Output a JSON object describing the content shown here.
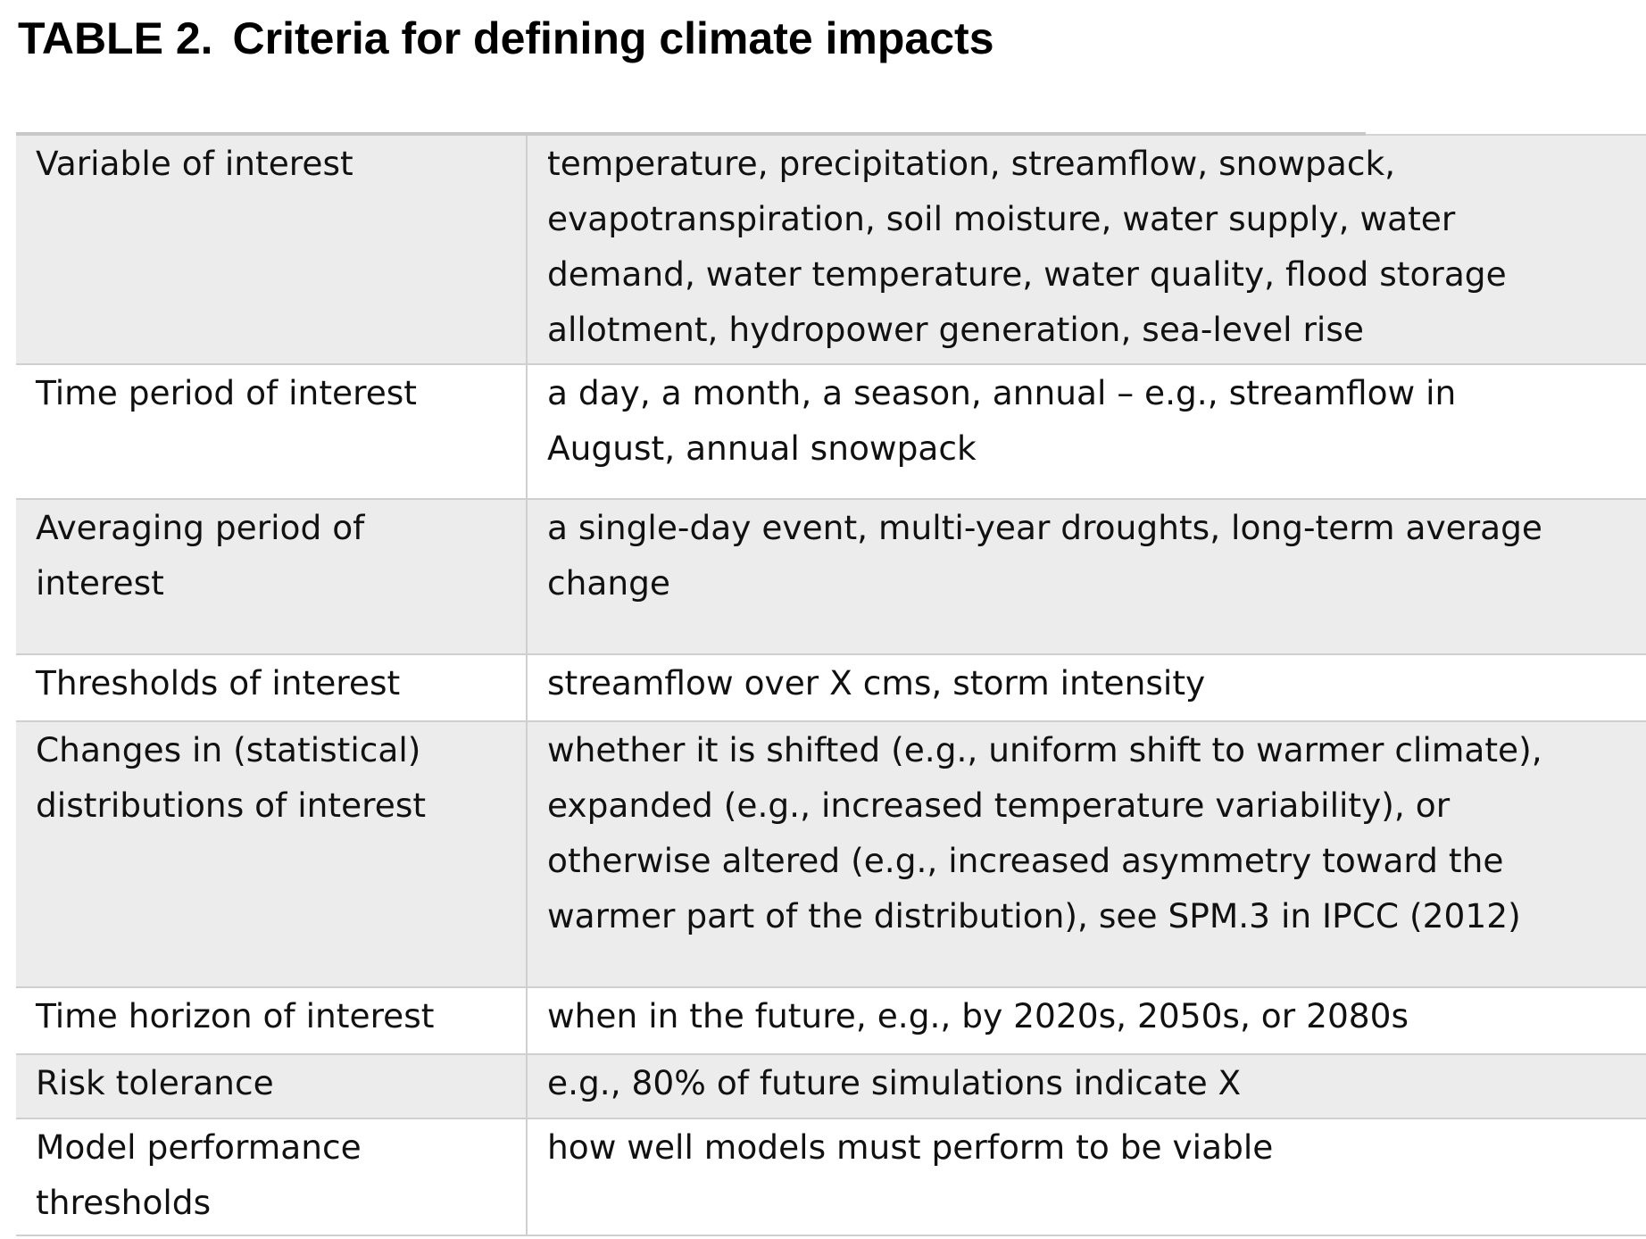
{
  "caption": {
    "label": "TABLE 2.",
    "title": "Criteria for defining climate impacts"
  },
  "rows": [
    {
      "criterion": "Variable of interest",
      "examples": "temperature, precipitation, streamflow, snowpack,\nevapotranspiration, soil moisture, water supply, water\ndemand, water temperature, water quality, flood storage\nallotment, hydropower generation, sea-level rise",
      "shaded": true
    },
    {
      "criterion": "Time period of interest",
      "examples": "a day, a month, a season, annual – e.g., streamflow in\nAugust, annual snowpack",
      "shaded": false
    },
    {
      "criterion": "Averaging period of\ninterest",
      "examples": "a single-day event, multi-year droughts, long-term average\nchange",
      "shaded": true
    },
    {
      "criterion": "Thresholds of interest",
      "examples": "streamflow over X cms, storm intensity",
      "shaded": false
    },
    {
      "criterion": "Changes in (statistical)\ndistributions of interest",
      "examples": "whether it is shifted (e.g., uniform shift to warmer climate),\nexpanded (e.g., increased temperature variability), or\notherwise altered (e.g., increased asymmetry toward the\nwarmer part of the distribution), see SPM.3 in IPCC (2012)",
      "shaded": true
    },
    {
      "criterion": "Time horizon of interest",
      "examples": "when in the future, e.g., by 2020s, 2050s, or 2080s",
      "shaded": false
    },
    {
      "criterion": "Risk tolerance",
      "examples": "e.g., 80% of future simulations indicate X",
      "shaded": true
    },
    {
      "criterion": "Model performance\nthresholds",
      "examples": "how well models must perform to be viable",
      "shaded": false
    }
  ]
}
